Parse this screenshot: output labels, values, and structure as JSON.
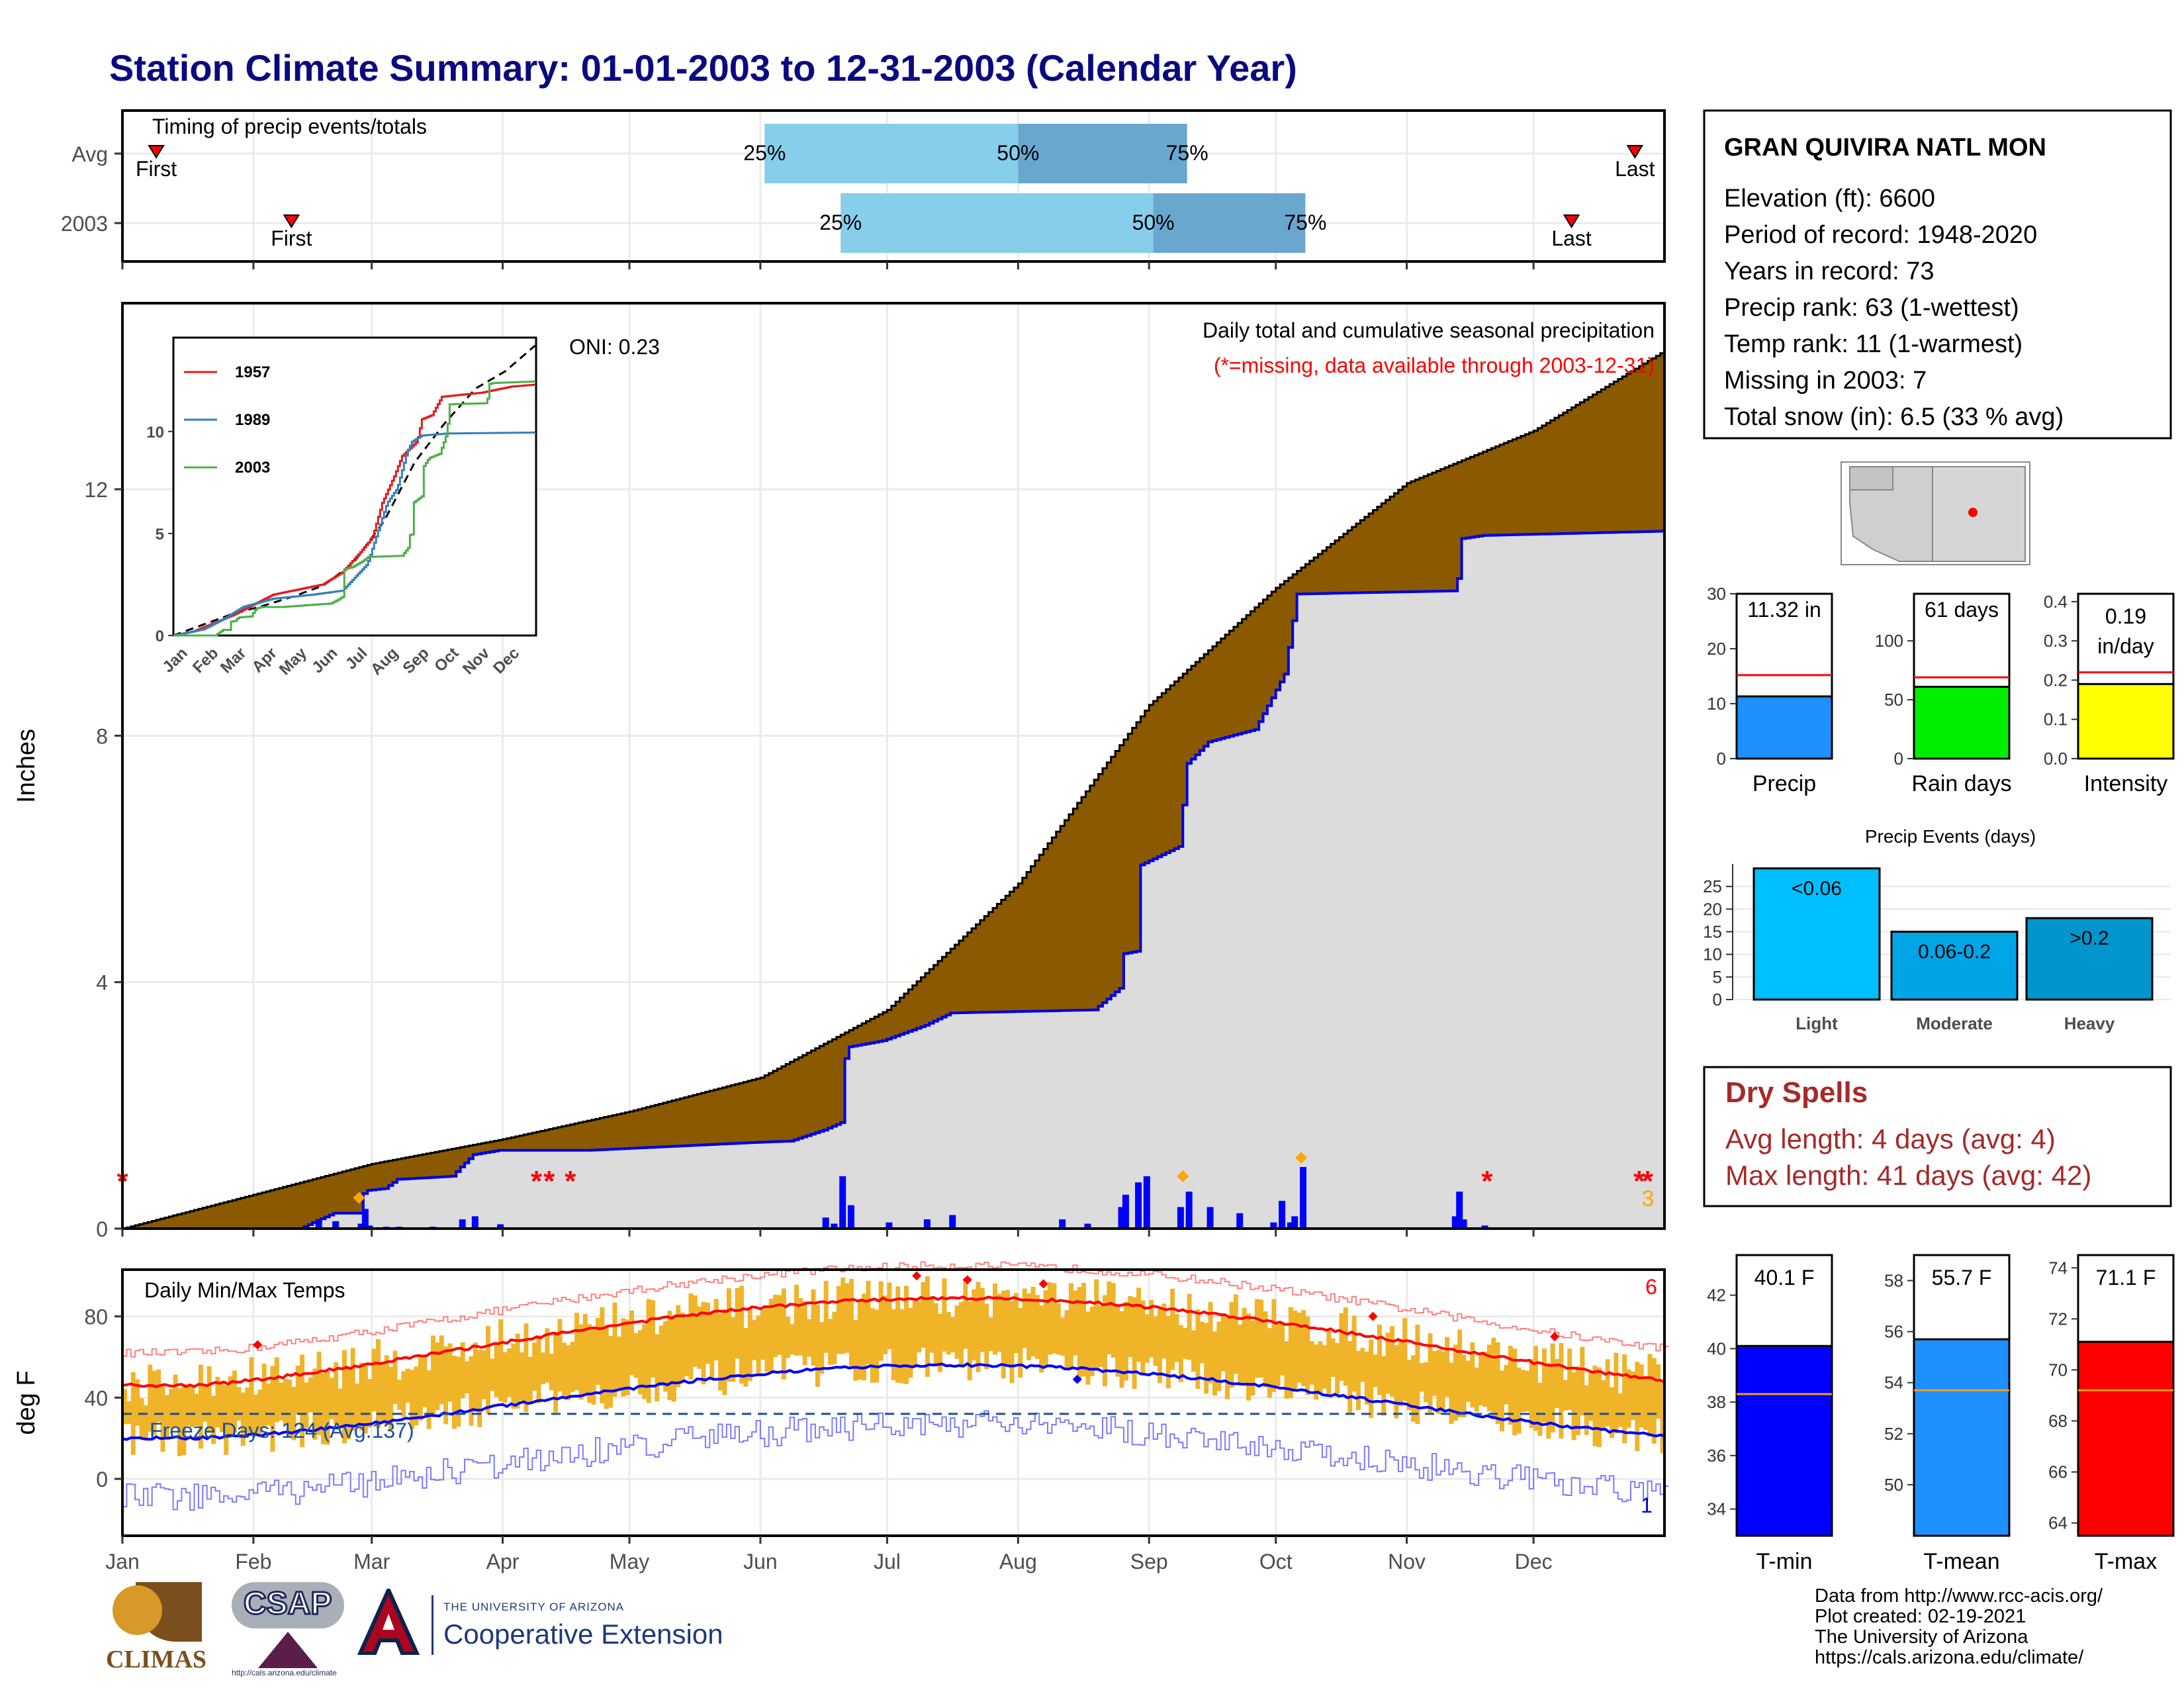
{
  "title": "Station Climate Summary: 01-01-2003 to 12-31-2003 (Calendar Year)",
  "colors": {
    "title": "#0a0a80",
    "cum_area": "#8b5a00",
    "precip_bars": "#0000ff",
    "temp_bars": "#f0b429",
    "max_line": "#ff0000",
    "min_line": "#0000ff",
    "q_light": "#87ceeb",
    "q_dark": "#6aa7cf",
    "missing": "#ff0000",
    "snow": "#ffa500"
  },
  "months": [
    "Jan",
    "Feb",
    "Mar",
    "Apr",
    "May",
    "Jun",
    "Jul",
    "Aug",
    "Sep",
    "Oct",
    "Nov",
    "Dec"
  ],
  "timing": {
    "title": "Timing of precip events/totals",
    "rows": [
      {
        "label": "Avg",
        "first_day": 8,
        "q25_day": 152,
        "q50_day": 212,
        "q75_day": 252,
        "last_day": 358
      },
      {
        "label": "2003",
        "first_day": 40,
        "q25_day": 170,
        "q50_day": 244,
        "q75_day": 280,
        "last_day": 343
      }
    ],
    "first_label": "First",
    "last_label": "Last",
    "pct_labels": [
      "25%",
      "50%",
      "75%"
    ]
  },
  "precip_panel": {
    "ylabel": "Inches",
    "yticks": [
      0,
      4,
      8,
      12
    ],
    "title": "Daily total and cumulative seasonal precipitation",
    "subtitle": "(*=missing, data available through 2003-12-31)",
    "oni": "ONI: 0.23",
    "snow_count": "3"
  },
  "inset": {
    "yticks": [
      0,
      5,
      10
    ],
    "months": [
      "Jan",
      "Feb",
      "Mar",
      "Apr",
      "May",
      "Jun",
      "Jul",
      "Aug",
      "Sep",
      "Oct",
      "Nov",
      "Dec"
    ],
    "legend": [
      {
        "name": "1957",
        "color": "#e41a1c"
      },
      {
        "name": "1989",
        "color": "#377eb8"
      },
      {
        "name": "2003",
        "color": "#4daf4a"
      }
    ]
  },
  "temp_panel": {
    "ylabel": "deg F",
    "yticks": [
      0,
      40,
      80
    ],
    "title": "Daily Min/Max Temps",
    "freeze": "Freeze Days: 124 (Avg.137)",
    "max_count": "6",
    "min_count": "1"
  },
  "station": {
    "name": "GRAN QUIVIRA NATL MON",
    "lines": [
      "Elevation (ft): 6600",
      "Period of record: 1948-2020",
      "Years in record: 73",
      "Precip rank: 63 (1-wettest)",
      "Temp rank: 11 (1-warmest)",
      "Missing in 2003: 7",
      "Total snow (in): 6.5 (33 % avg)"
    ]
  },
  "stat_bars": [
    {
      "name": "Precip",
      "value": 11.32,
      "label": "11.32 in",
      "avg": 15.2,
      "ymax": 30,
      "yticks": [
        0,
        10,
        20,
        30
      ],
      "color": "#1e90ff"
    },
    {
      "name": "Rain days",
      "value": 61,
      "label": "61 days",
      "avg": 69,
      "ymax": 140,
      "yticks": [
        0,
        50,
        100
      ],
      "color": "#00ee00"
    },
    {
      "name": "Intensity",
      "value": 0.19,
      "label": "0.19 in/day",
      "avg": 0.22,
      "ymax": 0.42,
      "yticks": [
        "0.0",
        "0.1",
        "0.2",
        "0.3",
        "0.4"
      ],
      "color": "#ffff00"
    }
  ],
  "events": {
    "title": "Precip Events (days)",
    "yticks": [
      0,
      5,
      10,
      15,
      20,
      25
    ],
    "bars": [
      {
        "name": "Light",
        "label": "<0.06",
        "value": 29,
        "color": "#00bfff"
      },
      {
        "name": "Moderate",
        "label": "0.06-0.2",
        "value": 15,
        "color": "#00a5e6"
      },
      {
        "name": "Heavy",
        "label": ">0.2",
        "value": 18,
        "color": "#0095cc"
      }
    ]
  },
  "dry_spells": {
    "title": "Dry Spells",
    "lines": [
      "Avg length: 4 days (avg: 4)",
      "Max length: 41 days (avg: 42)"
    ]
  },
  "temp_bars": [
    {
      "name": "T-min",
      "label": "40.1 F",
      "value": 40.1,
      "avg": 38.3,
      "ymin": 33,
      "ymax": 43.5,
      "yticks": [
        34,
        36,
        38,
        40,
        42
      ],
      "color": "#0000ff"
    },
    {
      "name": "T-mean",
      "label": "55.7 F",
      "value": 55.7,
      "avg": 53.7,
      "ymin": 48,
      "ymax": 59,
      "yticks": [
        50,
        52,
        54,
        56,
        58
      ],
      "color": "#1e90ff"
    },
    {
      "name": "T-max",
      "label": "71.1 F",
      "value": 71.1,
      "avg": 69.2,
      "ymin": 63.5,
      "ymax": 74.5,
      "yticks": [
        64,
        66,
        68,
        70,
        72,
        74
      ],
      "color": "#ff0000"
    }
  ],
  "credits": [
    "Data from http://www.rcc-acis.org/",
    "Plot created: 02-19-2021",
    "The University of Arizona",
    "https://cals.arizona.edu/climate/"
  ],
  "logos": {
    "climas": "CLIMAS",
    "csap": "CSAP",
    "csap_url": "http://cals.arizona.edu/climate",
    "ua_small": "THE UNIVERSITY OF ARIZONA",
    "ua_big": "Cooperative Extension"
  }
}
